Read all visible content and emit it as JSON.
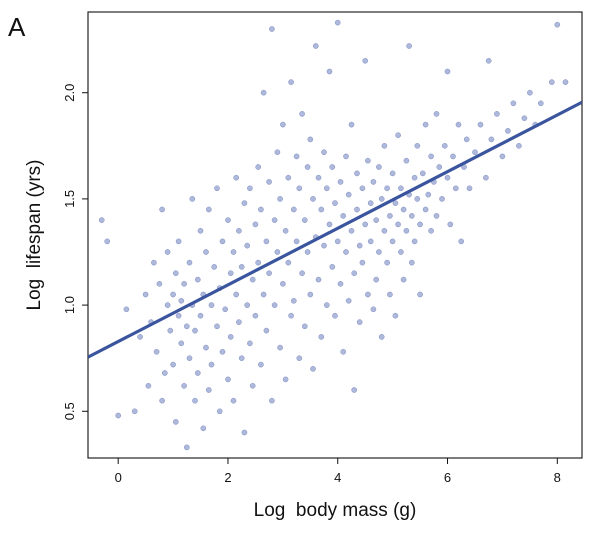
{
  "panel_label": "A",
  "chart_data": {
    "type": "scatter",
    "title": "",
    "xlabel": "Log  body mass (g)",
    "ylabel": "Log  lifespan (yrs)",
    "xlim": [
      -0.55,
      8.45
    ],
    "ylim": [
      0.28,
      2.38
    ],
    "x_ticks": [
      0,
      2,
      4,
      6,
      8
    ],
    "y_ticks": [
      0.5,
      1.0,
      1.5,
      2.0
    ],
    "x_tick_labels": [
      "0",
      "2",
      "4",
      "6",
      "8"
    ],
    "y_tick_labels": [
      "0.5",
      "1.0",
      "1.5",
      "2.0"
    ],
    "grid": false,
    "legend": "none",
    "point_color": "#3f56a6",
    "line_color": "#3a559e",
    "fit_line": {
      "x": [
        -0.55,
        8.45
      ],
      "y": [
        0.755,
        1.955
      ]
    },
    "series": [
      {
        "values": [
          [
            -0.3,
            1.4
          ],
          [
            -0.2,
            1.3
          ],
          [
            0.0,
            0.48
          ],
          [
            0.15,
            0.98
          ],
          [
            0.3,
            0.5
          ],
          [
            0.4,
            0.85
          ],
          [
            0.5,
            1.05
          ],
          [
            0.55,
            0.62
          ],
          [
            0.6,
            0.92
          ],
          [
            0.65,
            1.2
          ],
          [
            0.7,
            0.78
          ],
          [
            0.75,
            1.1
          ],
          [
            0.8,
            0.55
          ],
          [
            0.8,
            1.45
          ],
          [
            0.85,
            0.68
          ],
          [
            0.9,
            1.0
          ],
          [
            0.9,
            1.25
          ],
          [
            0.95,
            0.88
          ],
          [
            1.0,
            1.05
          ],
          [
            1.0,
            0.72
          ],
          [
            1.05,
            1.15
          ],
          [
            1.05,
            0.45
          ],
          [
            1.1,
            0.95
          ],
          [
            1.1,
            1.3
          ],
          [
            1.15,
            0.82
          ],
          [
            1.15,
            1.02
          ],
          [
            1.2,
            0.62
          ],
          [
            1.2,
            1.1
          ],
          [
            1.25,
            0.33
          ],
          [
            1.25,
            0.9
          ],
          [
            1.3,
            1.2
          ],
          [
            1.3,
            0.75
          ],
          [
            1.35,
            1.0
          ],
          [
            1.35,
            1.5
          ],
          [
            1.4,
            0.55
          ],
          [
            1.4,
            0.88
          ],
          [
            1.45,
            1.12
          ],
          [
            1.45,
            0.68
          ],
          [
            1.5,
            1.35
          ],
          [
            1.5,
            0.95
          ],
          [
            1.55,
            0.42
          ],
          [
            1.55,
            1.05
          ],
          [
            1.6,
            0.8
          ],
          [
            1.6,
            1.25
          ],
          [
            1.65,
            0.6
          ],
          [
            1.65,
            1.45
          ],
          [
            1.7,
            1.0
          ],
          [
            1.7,
            0.72
          ],
          [
            1.75,
            1.18
          ],
          [
            1.8,
            0.9
          ],
          [
            1.8,
            1.55
          ],
          [
            1.85,
            0.5
          ],
          [
            1.85,
            1.08
          ],
          [
            1.9,
            1.3
          ],
          [
            1.9,
            0.78
          ],
          [
            1.95,
            0.98
          ],
          [
            2.0,
            1.4
          ],
          [
            2.0,
            0.65
          ],
          [
            2.05,
            1.15
          ],
          [
            2.05,
            0.85
          ],
          [
            2.1,
            1.25
          ],
          [
            2.1,
            0.55
          ],
          [
            2.15,
            1.05
          ],
          [
            2.15,
            1.6
          ],
          [
            2.2,
            0.92
          ],
          [
            2.2,
            1.35
          ],
          [
            2.25,
            0.75
          ],
          [
            2.25,
            1.18
          ],
          [
            2.3,
            1.48
          ],
          [
            2.3,
            0.4
          ],
          [
            2.35,
            1.0
          ],
          [
            2.35,
            1.28
          ],
          [
            2.4,
            0.82
          ],
          [
            2.4,
            1.55
          ],
          [
            2.45,
            1.12
          ],
          [
            2.45,
            0.62
          ],
          [
            2.5,
            1.38
          ],
          [
            2.5,
            0.95
          ],
          [
            2.55,
            1.65
          ],
          [
            2.55,
            1.2
          ],
          [
            2.6,
            0.72
          ],
          [
            2.6,
            1.45
          ],
          [
            2.65,
            1.05
          ],
          [
            2.65,
            2.0
          ],
          [
            2.7,
            1.3
          ],
          [
            2.7,
            0.88
          ],
          [
            2.75,
            1.58
          ],
          [
            2.75,
            1.15
          ],
          [
            2.8,
            2.3
          ],
          [
            2.8,
            0.55
          ],
          [
            2.85,
            1.4
          ],
          [
            2.85,
            1.0
          ],
          [
            2.9,
            1.72
          ],
          [
            2.9,
            1.25
          ],
          [
            2.95,
            0.8
          ],
          [
            2.95,
            1.5
          ],
          [
            3.0,
            1.1
          ],
          [
            3.0,
            1.85
          ],
          [
            3.05,
            1.35
          ],
          [
            3.05,
            0.65
          ],
          [
            3.1,
            1.6
          ],
          [
            3.1,
            1.2
          ],
          [
            3.15,
            0.95
          ],
          [
            3.15,
            2.05
          ],
          [
            3.2,
            1.45
          ],
          [
            3.2,
            1.02
          ],
          [
            3.25,
            1.7
          ],
          [
            3.25,
            1.3
          ],
          [
            3.3,
            0.75
          ],
          [
            3.3,
            1.55
          ],
          [
            3.35,
            1.15
          ],
          [
            3.35,
            1.9
          ],
          [
            3.4,
            1.4
          ],
          [
            3.4,
            0.9
          ],
          [
            3.45,
            1.65
          ],
          [
            3.45,
            1.25
          ],
          [
            3.5,
            1.05
          ],
          [
            3.5,
            1.78
          ],
          [
            3.55,
            1.5
          ],
          [
            3.55,
            0.7
          ],
          [
            3.6,
            1.32
          ],
          [
            3.6,
            2.22
          ],
          [
            3.65,
            1.6
          ],
          [
            3.65,
            1.12
          ],
          [
            3.7,
            1.45
          ],
          [
            3.7,
            0.85
          ],
          [
            3.75,
            1.72
          ],
          [
            3.75,
            1.28
          ],
          [
            3.8,
            1.0
          ],
          [
            3.8,
            1.55
          ],
          [
            3.85,
            1.38
          ],
          [
            3.85,
            2.1
          ],
          [
            3.9,
            1.65
          ],
          [
            3.9,
            1.18
          ],
          [
            3.95,
            0.95
          ],
          [
            3.95,
            1.48
          ],
          [
            4.0,
            1.3
          ],
          [
            4.0,
            2.33
          ],
          [
            4.05,
            1.58
          ],
          [
            4.05,
            1.1
          ],
          [
            4.1,
            1.42
          ],
          [
            4.1,
            0.78
          ],
          [
            4.15,
            1.7
          ],
          [
            4.15,
            1.25
          ],
          [
            4.2,
            1.52
          ],
          [
            4.2,
            1.02
          ],
          [
            4.25,
            1.35
          ],
          [
            4.25,
            1.85
          ],
          [
            4.3,
            1.15
          ],
          [
            4.3,
            0.6
          ],
          [
            4.35,
            1.45
          ],
          [
            4.35,
            1.62
          ],
          [
            4.4,
            1.28
          ],
          [
            4.4,
            0.92
          ],
          [
            4.45,
            1.55
          ],
          [
            4.45,
            1.2
          ],
          [
            4.5,
            1.38
          ],
          [
            4.5,
            2.15
          ],
          [
            4.55,
            1.05
          ],
          [
            4.55,
            1.68
          ],
          [
            4.6,
            1.48
          ],
          [
            4.6,
            1.3
          ],
          [
            4.65,
            0.98
          ],
          [
            4.65,
            1.58
          ],
          [
            4.7,
            1.4
          ],
          [
            4.7,
            1.12
          ],
          [
            4.75,
            1.65
          ],
          [
            4.75,
            1.25
          ],
          [
            4.8,
            1.5
          ],
          [
            4.8,
            0.85
          ],
          [
            4.85,
            1.35
          ],
          [
            4.85,
            1.75
          ],
          [
            4.9,
            1.2
          ],
          [
            4.9,
            1.55
          ],
          [
            4.95,
            1.42
          ],
          [
            4.95,
            1.05
          ],
          [
            5.0,
            1.62
          ],
          [
            5.0,
            1.3
          ],
          [
            5.05,
            1.48
          ],
          [
            5.05,
            0.95
          ],
          [
            5.1,
            1.38
          ],
          [
            5.1,
            1.8
          ],
          [
            5.15,
            1.25
          ],
          [
            5.15,
            1.55
          ],
          [
            5.2,
            1.45
          ],
          [
            5.2,
            1.12
          ],
          [
            5.25,
            1.68
          ],
          [
            5.25,
            1.35
          ],
          [
            5.3,
            1.52
          ],
          [
            5.3,
            2.22
          ],
          [
            5.35,
            1.42
          ],
          [
            5.35,
            1.2
          ],
          [
            5.4,
            1.6
          ],
          [
            5.4,
            1.3
          ],
          [
            5.45,
            1.5
          ],
          [
            5.45,
            1.75
          ],
          [
            5.5,
            1.38
          ],
          [
            5.5,
            1.05
          ],
          [
            5.55,
            1.62
          ],
          [
            5.6,
            1.45
          ],
          [
            5.6,
            1.85
          ],
          [
            5.65,
            1.52
          ],
          [
            5.7,
            1.35
          ],
          [
            5.7,
            1.7
          ],
          [
            5.75,
            1.58
          ],
          [
            5.8,
            1.42
          ],
          [
            5.8,
            1.9
          ],
          [
            5.85,
            1.65
          ],
          [
            5.9,
            1.5
          ],
          [
            5.95,
            1.75
          ],
          [
            6.0,
            1.6
          ],
          [
            6.0,
            2.1
          ],
          [
            6.05,
            1.38
          ],
          [
            6.1,
            1.7
          ],
          [
            6.15,
            1.55
          ],
          [
            6.2,
            1.85
          ],
          [
            6.25,
            1.3
          ],
          [
            6.3,
            1.65
          ],
          [
            6.35,
            1.78
          ],
          [
            6.4,
            1.55
          ],
          [
            6.5,
            1.72
          ],
          [
            6.6,
            1.85
          ],
          [
            6.7,
            1.6
          ],
          [
            6.75,
            2.15
          ],
          [
            6.8,
            1.78
          ],
          [
            6.9,
            1.9
          ],
          [
            7.0,
            1.7
          ],
          [
            7.1,
            1.82
          ],
          [
            7.2,
            1.95
          ],
          [
            7.3,
            1.75
          ],
          [
            7.4,
            1.88
          ],
          [
            7.5,
            2.0
          ],
          [
            7.6,
            1.85
          ],
          [
            7.7,
            1.95
          ],
          [
            7.9,
            2.05
          ],
          [
            8.0,
            2.32
          ],
          [
            8.15,
            2.05
          ]
        ]
      }
    ]
  }
}
